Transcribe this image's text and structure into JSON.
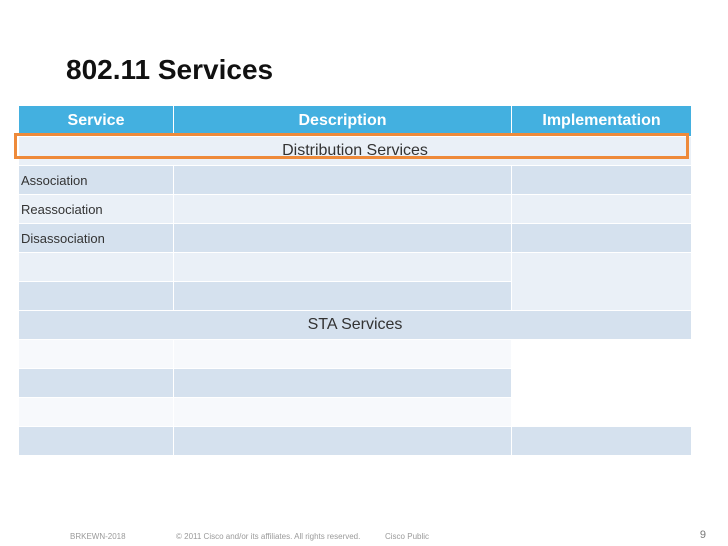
{
  "slide": {
    "title": "802.11 Services"
  },
  "table": {
    "headers": [
      "Service",
      "Description",
      "Implementation"
    ],
    "sections": [
      {
        "label": "Distribution Services",
        "rows": [
          "Association",
          "Reassociation",
          "Disassociation",
          "",
          ""
        ]
      },
      {
        "label": "STA Services",
        "rows": [
          "",
          "",
          "",
          ""
        ]
      }
    ]
  },
  "footer": {
    "code": "BRKEWN-2018",
    "copyright": "© 2011 Cisco and/or its affiliates. All rights reserved.",
    "classification": "Cisco Public",
    "page_number": "9"
  },
  "colors": {
    "header_bg": "#43b0e0",
    "highlight_border": "#ee8a3a"
  }
}
